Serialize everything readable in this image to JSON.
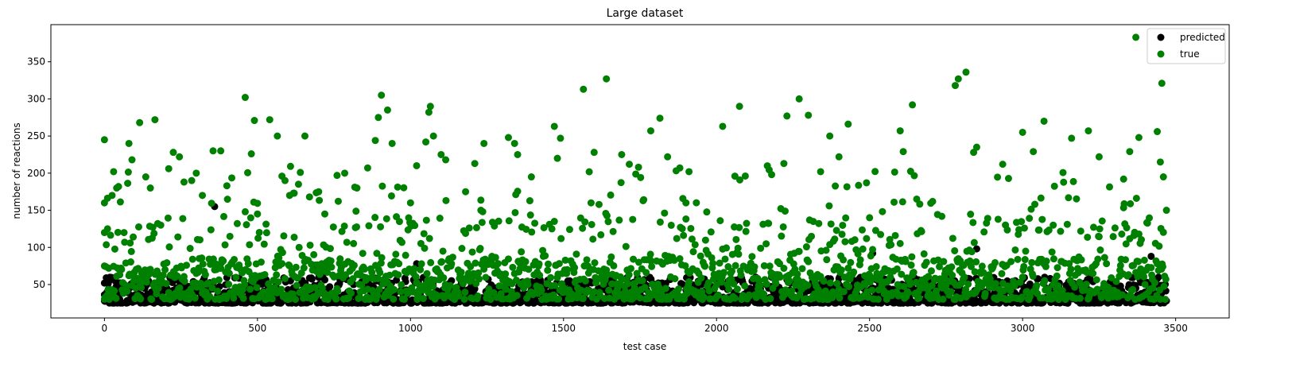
{
  "chart_data": {
    "type": "scatter",
    "title": "Large dataset",
    "xlabel": "test case",
    "ylabel": "number of reactions",
    "xlim": [
      -175,
      3675
    ],
    "ylim": [
      5,
      400
    ],
    "xticks": [
      0,
      500,
      1000,
      1500,
      2000,
      2500,
      3000,
      3500
    ],
    "yticks": [
      50,
      100,
      150,
      200,
      250,
      300,
      350
    ],
    "grid": false,
    "legend_position": "top-right",
    "n_points": 3470,
    "series": [
      {
        "name": "predicted",
        "color": "#000000",
        "marker": "circle",
        "typical_range": [
          25,
          60
        ],
        "points": [
          [
            0,
            28
          ],
          [
            0,
            52
          ],
          [
            360,
            155
          ],
          [
            690,
            76
          ],
          [
            1020,
            78
          ],
          [
            1180,
            30
          ],
          [
            1520,
            55
          ],
          [
            2130,
            50
          ],
          [
            2480,
            45
          ],
          [
            2510,
            92
          ],
          [
            2850,
            98
          ],
          [
            3420,
            88
          ],
          [
            3470,
            28
          ],
          [
            50,
            30
          ],
          [
            120,
            29
          ],
          [
            200,
            31
          ],
          [
            300,
            28
          ],
          [
            410,
            30
          ],
          [
            520,
            27
          ],
          [
            640,
            29
          ],
          [
            760,
            30
          ],
          [
            880,
            28
          ],
          [
            940,
            26
          ],
          [
            1100,
            29
          ],
          [
            1250,
            28
          ],
          [
            1390,
            30
          ],
          [
            1470,
            27
          ],
          [
            1610,
            29
          ],
          [
            1760,
            28
          ],
          [
            1830,
            26
          ],
          [
            1960,
            29
          ],
          [
            2050,
            28
          ],
          [
            2160,
            26
          ],
          [
            2290,
            29
          ],
          [
            2400,
            28
          ],
          [
            2600,
            27
          ],
          [
            2660,
            26
          ],
          [
            2760,
            29
          ],
          [
            2900,
            28
          ],
          [
            3050,
            29
          ],
          [
            3180,
            28
          ],
          [
            3300,
            27
          ],
          [
            3400,
            29
          ]
        ]
      },
      {
        "name": "true",
        "color": "#008000",
        "marker": "circle",
        "typical_range": [
          30,
          150
        ],
        "points": [
          [
            0,
            245
          ],
          [
            0,
            160
          ],
          [
            0,
            120
          ],
          [
            0,
            75
          ],
          [
            10,
            125
          ],
          [
            25,
            170
          ],
          [
            30,
            202
          ],
          [
            40,
            180
          ],
          [
            80,
            240
          ],
          [
            90,
            218
          ],
          [
            115,
            268
          ],
          [
            135,
            195
          ],
          [
            150,
            180
          ],
          [
            165,
            272
          ],
          [
            210,
            206
          ],
          [
            225,
            228
          ],
          [
            245,
            222
          ],
          [
            260,
            188
          ],
          [
            285,
            190
          ],
          [
            300,
            200
          ],
          [
            320,
            170
          ],
          [
            355,
            230
          ],
          [
            380,
            230
          ],
          [
            400,
            183
          ],
          [
            460,
            302
          ],
          [
            480,
            226
          ],
          [
            490,
            271
          ],
          [
            540,
            272
          ],
          [
            565,
            250
          ],
          [
            580,
            196
          ],
          [
            590,
            190
          ],
          [
            605,
            170
          ],
          [
            620,
            173
          ],
          [
            655,
            250
          ],
          [
            670,
            168
          ],
          [
            700,
            175
          ],
          [
            720,
            145
          ],
          [
            760,
            197
          ],
          [
            785,
            200
          ],
          [
            825,
            180
          ],
          [
            860,
            207
          ],
          [
            885,
            244
          ],
          [
            895,
            275
          ],
          [
            905,
            305
          ],
          [
            925,
            285
          ],
          [
            940,
            240
          ],
          [
            1000,
            160
          ],
          [
            1020,
            210
          ],
          [
            1050,
            242
          ],
          [
            1060,
            282
          ],
          [
            1065,
            290
          ],
          [
            1075,
            250
          ],
          [
            1100,
            225
          ],
          [
            1115,
            218
          ],
          [
            1180,
            175
          ],
          [
            1210,
            213
          ],
          [
            1240,
            240
          ],
          [
            1320,
            248
          ],
          [
            1340,
            240
          ],
          [
            1350,
            225
          ],
          [
            1395,
            195
          ],
          [
            1470,
            263
          ],
          [
            1490,
            247
          ],
          [
            1480,
            220
          ],
          [
            1565,
            313
          ],
          [
            1600,
            228
          ],
          [
            1640,
            327
          ],
          [
            1690,
            225
          ],
          [
            1715,
            212
          ],
          [
            1745,
            208
          ],
          [
            1785,
            257
          ],
          [
            1815,
            274
          ],
          [
            1840,
            222
          ],
          [
            1880,
            207
          ],
          [
            1910,
            202
          ],
          [
            2020,
            263
          ],
          [
            2060,
            196
          ],
          [
            2075,
            290
          ],
          [
            2180,
            198
          ],
          [
            2220,
            213
          ],
          [
            2230,
            277
          ],
          [
            2270,
            300
          ],
          [
            2300,
            278
          ],
          [
            2340,
            202
          ],
          [
            2370,
            250
          ],
          [
            2400,
            222
          ],
          [
            2430,
            266
          ],
          [
            2490,
            187
          ],
          [
            2600,
            257
          ],
          [
            2610,
            229
          ],
          [
            2640,
            292
          ],
          [
            2780,
            318
          ],
          [
            2790,
            327
          ],
          [
            2815,
            336
          ],
          [
            2840,
            228
          ],
          [
            2850,
            235
          ],
          [
            2935,
            212
          ],
          [
            3000,
            255
          ],
          [
            3035,
            229
          ],
          [
            3070,
            270
          ],
          [
            3160,
            247
          ],
          [
            3215,
            257
          ],
          [
            3250,
            222
          ],
          [
            3330,
            192
          ],
          [
            3350,
            229
          ],
          [
            3380,
            248
          ],
          [
            3440,
            256
          ],
          [
            3450,
            215
          ],
          [
            3455,
            321
          ],
          [
            3460,
            195
          ],
          [
            3470,
            150
          ],
          [
            3370,
            383
          ],
          [
            500,
            145
          ],
          [
            1230,
            150
          ],
          [
            1900,
            160
          ],
          [
            2500,
            140
          ],
          [
            3100,
            130
          ]
        ]
      }
    ]
  }
}
